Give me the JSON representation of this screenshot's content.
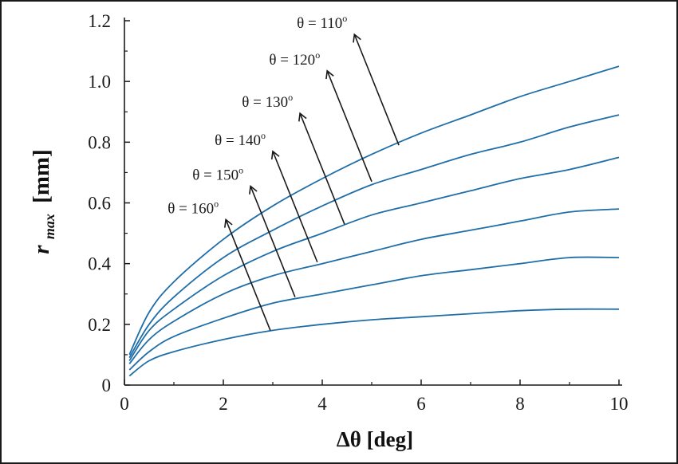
{
  "chart_data": {
    "type": "line",
    "xlabel": "Δθ [deg]",
    "ylabel_main": "r",
    "ylabel_sub": "max",
    "ylabel_unit": "[mm]",
    "xlim": [
      0,
      10
    ],
    "ylim": [
      0,
      1.2
    ],
    "x_ticks": [
      0,
      2,
      4,
      6,
      8,
      10
    ],
    "x_tick_labels": [
      "0",
      "2",
      "4",
      "6",
      "8",
      "10"
    ],
    "y_ticks": [
      0,
      0.2,
      0.4,
      0.6,
      0.8,
      1.0,
      1.2
    ],
    "y_tick_labels": [
      "0",
      "0.2",
      "0.4",
      "0.6",
      "0.8",
      "1.0",
      "1.2"
    ],
    "grid": false,
    "line_color": "#1f6ea8",
    "series": [
      {
        "x": [
          0.1,
          0.5,
          1,
          2,
          3,
          4,
          5,
          6,
          7,
          8,
          9,
          10
        ],
        "y": [
          0.1,
          0.24,
          0.34,
          0.48,
          0.59,
          0.68,
          0.76,
          0.83,
          0.89,
          0.95,
          1.0,
          1.05
        ]
      },
      {
        "x": [
          0.1,
          0.5,
          1,
          2,
          3,
          4,
          5,
          6,
          7,
          8,
          9,
          10
        ],
        "y": [
          0.09,
          0.2,
          0.29,
          0.42,
          0.51,
          0.59,
          0.66,
          0.71,
          0.76,
          0.8,
          0.85,
          0.89
        ]
      },
      {
        "x": [
          0.1,
          0.5,
          1,
          2,
          3,
          4,
          5,
          6,
          7,
          8,
          9,
          10
        ],
        "y": [
          0.08,
          0.18,
          0.25,
          0.36,
          0.44,
          0.5,
          0.56,
          0.6,
          0.64,
          0.68,
          0.71,
          0.75
        ]
      },
      {
        "x": [
          0.1,
          0.5,
          1,
          2,
          3,
          4,
          5,
          6,
          7,
          8,
          9,
          10
        ],
        "y": [
          0.07,
          0.15,
          0.21,
          0.3,
          0.36,
          0.4,
          0.44,
          0.48,
          0.51,
          0.54,
          0.57,
          0.58
        ]
      },
      {
        "x": [
          0.1,
          0.5,
          1,
          2,
          3,
          4,
          5,
          6,
          7,
          8,
          9,
          10
        ],
        "y": [
          0.05,
          0.11,
          0.16,
          0.22,
          0.27,
          0.3,
          0.33,
          0.36,
          0.38,
          0.4,
          0.42,
          0.42
        ]
      },
      {
        "x": [
          0.1,
          0.5,
          1,
          2,
          3,
          4,
          5,
          6,
          7,
          8,
          9,
          10
        ],
        "y": [
          0.03,
          0.08,
          0.11,
          0.15,
          0.18,
          0.2,
          0.215,
          0.225,
          0.235,
          0.245,
          0.25,
          0.25
        ]
      }
    ],
    "annotations": [
      {
        "label": "θ = 110",
        "sup": "o",
        "tail_x": 5.55,
        "tail_y": 0.79,
        "head_x": 4.65,
        "head_y": 1.155
      },
      {
        "label": "θ = 120",
        "sup": "o",
        "tail_x": 5.0,
        "tail_y": 0.67,
        "head_x": 4.1,
        "head_y": 1.035
      },
      {
        "label": "θ = 130",
        "sup": "o",
        "tail_x": 4.45,
        "tail_y": 0.53,
        "head_x": 3.55,
        "head_y": 0.895
      },
      {
        "label": "θ = 140",
        "sup": "o",
        "tail_x": 3.9,
        "tail_y": 0.405,
        "head_x": 3.0,
        "head_y": 0.77
      },
      {
        "label": "θ = 150",
        "sup": "o",
        "tail_x": 3.45,
        "tail_y": 0.29,
        "head_x": 2.55,
        "head_y": 0.655
      },
      {
        "label": "θ = 160",
        "sup": "o",
        "tail_x": 2.95,
        "tail_y": 0.18,
        "head_x": 2.05,
        "head_y": 0.545
      }
    ]
  }
}
